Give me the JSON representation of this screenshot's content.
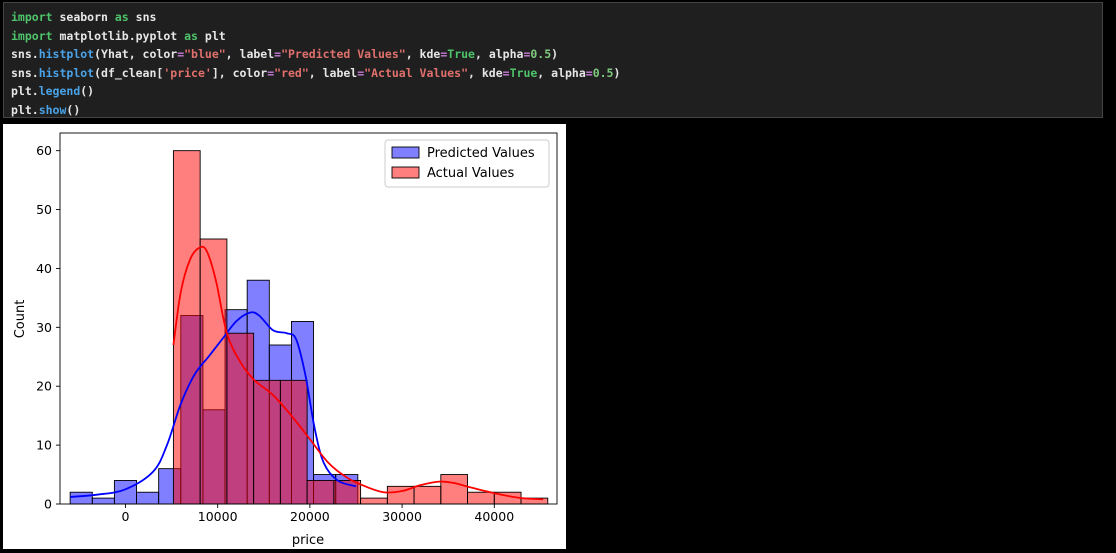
{
  "code_cell": {
    "lines": [
      [
        [
          "kw",
          "import"
        ],
        [
          "plain",
          " seaborn "
        ],
        [
          "kw",
          "as"
        ],
        [
          "plain",
          " sns"
        ]
      ],
      [
        [
          "kw",
          "import"
        ],
        [
          "plain",
          " matplotlib.pyplot "
        ],
        [
          "kw",
          "as"
        ],
        [
          "plain",
          " plt"
        ]
      ],
      [
        [
          "plain",
          "sns."
        ],
        [
          "fn",
          "histplot"
        ],
        [
          "plain",
          "(Yhat, color"
        ],
        [
          "op",
          "="
        ],
        [
          "str",
          "\"blue\""
        ],
        [
          "plain",
          ", label"
        ],
        [
          "op",
          "="
        ],
        [
          "str",
          "\"Predicted Values\""
        ],
        [
          "plain",
          ", kde"
        ],
        [
          "op",
          "="
        ],
        [
          "kw",
          "True"
        ],
        [
          "plain",
          ", alpha"
        ],
        [
          "op",
          "="
        ],
        [
          "num",
          "0.5"
        ],
        [
          "plain",
          ")"
        ]
      ],
      [
        [
          "plain",
          "sns."
        ],
        [
          "fn",
          "histplot"
        ],
        [
          "plain",
          "(df_clean["
        ],
        [
          "str",
          "'price'"
        ],
        [
          "plain",
          "], color"
        ],
        [
          "op",
          "="
        ],
        [
          "str",
          "\"red\""
        ],
        [
          "plain",
          ", label"
        ],
        [
          "op",
          "="
        ],
        [
          "str",
          "\"Actual Values\""
        ],
        [
          "plain",
          ", kde"
        ],
        [
          "op",
          "="
        ],
        [
          "kw",
          "True"
        ],
        [
          "plain",
          ", alpha"
        ],
        [
          "op",
          "="
        ],
        [
          "num",
          "0.5"
        ],
        [
          "plain",
          ")"
        ]
      ],
      [
        [
          "plain",
          "plt."
        ],
        [
          "fn",
          "legend"
        ],
        [
          "plain",
          "()"
        ]
      ],
      [
        [
          "plain",
          "plt."
        ],
        [
          "fn",
          "show"
        ],
        [
          "plain",
          "()"
        ]
      ]
    ]
  },
  "chart_data": {
    "type": "histogram",
    "xlabel": "price",
    "ylabel": "Count",
    "xlim": [
      -7100,
      46800
    ],
    "ylim": [
      0,
      63
    ],
    "x_ticks": [
      0,
      10000,
      20000,
      30000,
      40000
    ],
    "x_tick_labels": [
      "0",
      "10000",
      "20000",
      "30000",
      "40000"
    ],
    "y_ticks": [
      0,
      10,
      20,
      30,
      40,
      50,
      60
    ],
    "y_tick_labels": [
      "0",
      "10",
      "20",
      "30",
      "40",
      "50",
      "60"
    ],
    "legend_position": "top-right",
    "series": [
      {
        "name": "Predicted Values",
        "color": "#0000ff",
        "bar_fill": "#7f7fff",
        "alpha": 0.5,
        "bins": [
          {
            "x0": -6000,
            "x1": -3600,
            "count": 2
          },
          {
            "x0": -3600,
            "x1": -1200,
            "count": 1
          },
          {
            "x0": -1200,
            "x1": 1200,
            "count": 4
          },
          {
            "x0": 1200,
            "x1": 3600,
            "count": 2
          },
          {
            "x0": 3600,
            "x1": 6000,
            "count": 6
          },
          {
            "x0": 6000,
            "x1": 8400,
            "count": 32
          },
          {
            "x0": 8400,
            "x1": 10800,
            "count": 16
          },
          {
            "x0": 10800,
            "x1": 13200,
            "count": 33
          },
          {
            "x0": 13200,
            "x1": 15600,
            "count": 38
          },
          {
            "x0": 15600,
            "x1": 18000,
            "count": 27
          },
          {
            "x0": 18000,
            "x1": 20400,
            "count": 31
          },
          {
            "x0": 20400,
            "x1": 22800,
            "count": 5
          },
          {
            "x0": 22800,
            "x1": 25200,
            "count": 5
          }
        ],
        "kde": {
          "x": [
            -6000,
            -3000,
            0,
            3000,
            4500,
            6000,
            7500,
            9000,
            10500,
            12000,
            13500,
            14500,
            16000,
            17500,
            18500,
            19500,
            20500,
            21500,
            23000,
            25000
          ],
          "y": [
            1.2,
            1.6,
            2.5,
            5.5,
            10,
            17,
            22,
            25,
            28,
            31,
            32.5,
            32,
            29.5,
            29,
            28,
            22,
            13,
            7,
            4,
            3
          ]
        }
      },
      {
        "name": "Actual Values",
        "color": "#ff0000",
        "bar_fill": "#ff7f7f",
        "alpha": 0.5,
        "bins": [
          {
            "x0": 5200,
            "x1": 8100,
            "count": 60
          },
          {
            "x0": 8100,
            "x1": 11000,
            "count": 45
          },
          {
            "x0": 11000,
            "x1": 13900,
            "count": 29
          },
          {
            "x0": 13900,
            "x1": 16800,
            "count": 21
          },
          {
            "x0": 16800,
            "x1": 19700,
            "count": 21
          },
          {
            "x0": 19700,
            "x1": 22600,
            "count": 4
          },
          {
            "x0": 22600,
            "x1": 25500,
            "count": 4
          },
          {
            "x0": 25500,
            "x1": 28400,
            "count": 1
          },
          {
            "x0": 28400,
            "x1": 31300,
            "count": 3
          },
          {
            "x0": 31300,
            "x1": 34200,
            "count": 3
          },
          {
            "x0": 34200,
            "x1": 37100,
            "count": 5
          },
          {
            "x0": 37100,
            "x1": 40000,
            "count": 2
          },
          {
            "x0": 40000,
            "x1": 42900,
            "count": 2
          },
          {
            "x0": 42900,
            "x1": 45800,
            "count": 1
          }
        ],
        "kde": {
          "x": [
            5200,
            6000,
            7000,
            8000,
            8800,
            9800,
            11000,
            12500,
            14000,
            16000,
            18000,
            20000,
            22000,
            24000,
            26000,
            28000,
            30000,
            32000,
            34000,
            35500,
            37000,
            39000,
            41000,
            43000,
            45300
          ],
          "y": [
            27,
            36,
            41.5,
            43.5,
            43,
            38,
            29,
            24,
            21,
            18.5,
            15,
            11,
            7,
            4.5,
            3,
            2,
            2.2,
            3.2,
            3.8,
            3.6,
            3,
            2.2,
            1.5,
            1.0,
            0.8
          ]
        }
      }
    ]
  }
}
